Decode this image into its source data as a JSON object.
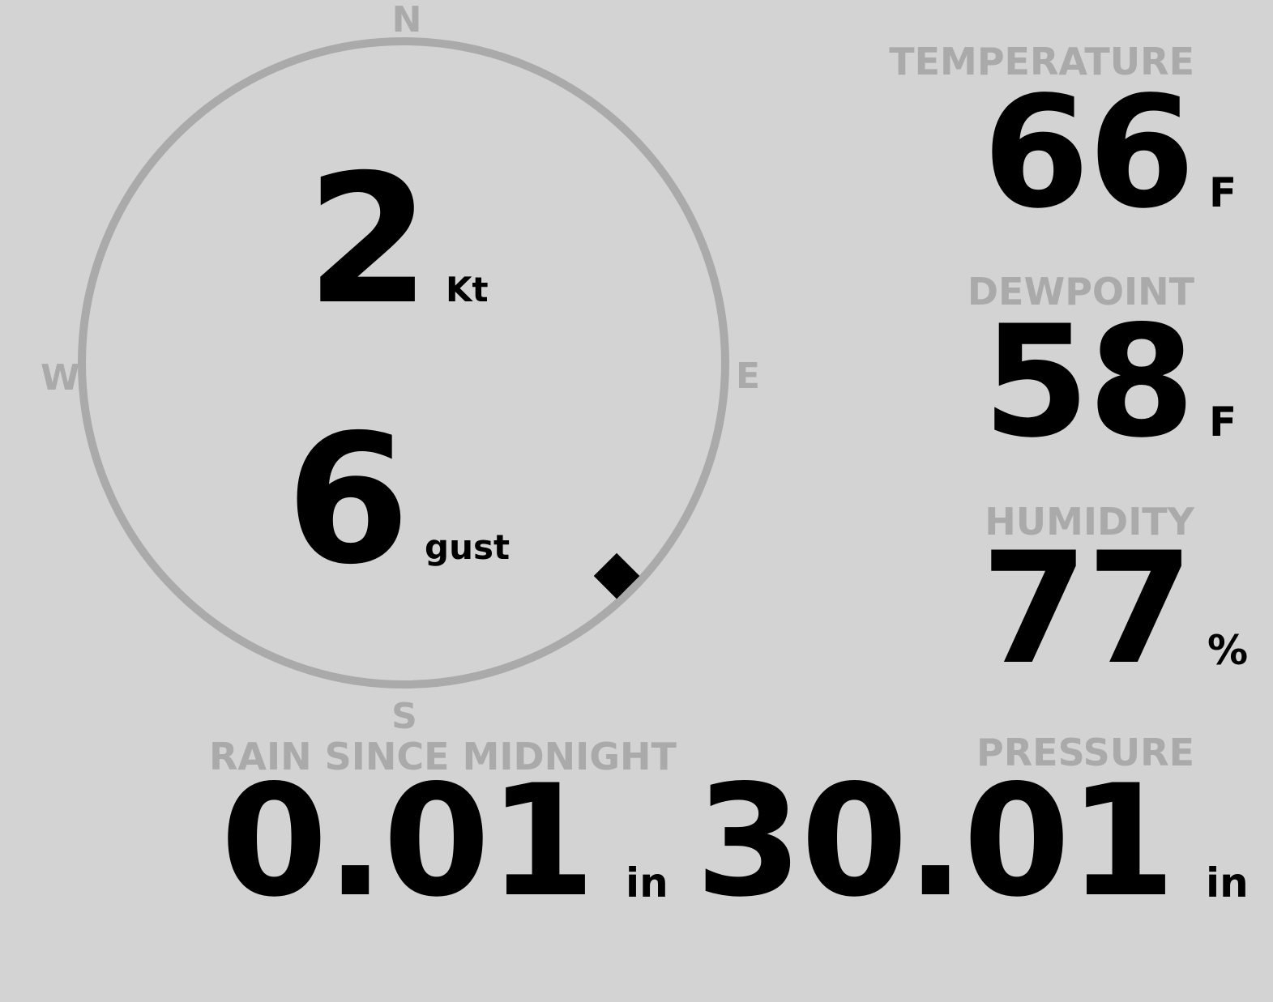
{
  "colors": {
    "background": "#d3d3d3",
    "label": "#aaaaaa",
    "value": "#000000",
    "ring": "#aaaaaa"
  },
  "wind": {
    "speed": "2",
    "speed_unit": "Kt",
    "gust": "6",
    "gust_unit": "gust",
    "direction_degrees": 135,
    "compass": {
      "north": "N",
      "east": "E",
      "south": "S",
      "west": "W"
    }
  },
  "temperature": {
    "label": "TEMPERATURE",
    "value": "66",
    "unit": "F"
  },
  "dewpoint": {
    "label": "DEWPOINT",
    "value": "58",
    "unit": "F"
  },
  "humidity": {
    "label": "HUMIDITY",
    "value": "77",
    "unit": "%"
  },
  "rain": {
    "label": "RAIN SINCE MIDNIGHT",
    "value": "0.01",
    "unit": "in"
  },
  "pressure": {
    "label": "PRESSURE",
    "value": "30.01",
    "unit": "in"
  }
}
